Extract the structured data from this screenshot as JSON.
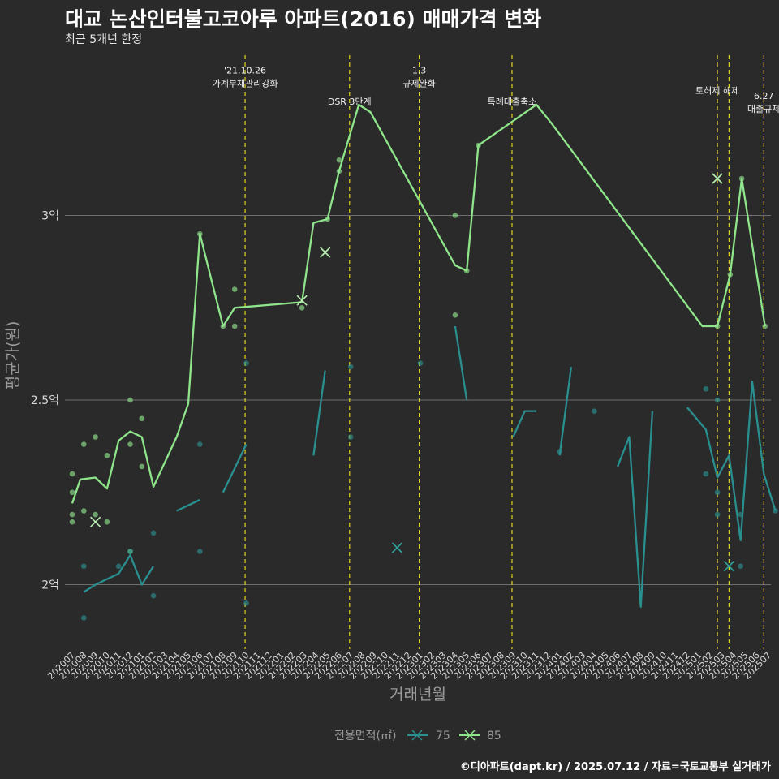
{
  "title": "대교 논산인터불고코아루 아파트(2016) 매매가격 변화",
  "subtitle": "최근 5개년 한정",
  "caption": "©디아파트(dapt.kr) / 2025.07.12 / 자료=국토교통부 실거래가",
  "chart_data": {
    "type": "line",
    "xlabel": "거래년월",
    "ylabel": "평균가(원)",
    "ylim": [
      1.85,
      3.13
    ],
    "unit": "억",
    "y_ticks": [
      2.0,
      2.5,
      3.0
    ],
    "y_tick_labels": [
      "2억",
      "2.5억",
      "3억"
    ],
    "grid": true,
    "legend": {
      "title": "전용면적(㎡)",
      "position": "bottom",
      "entries": [
        {
          "label": "75",
          "color": "#2a8f8f"
        },
        {
          "label": "85",
          "color": "#8ee58a"
        }
      ]
    },
    "x_categories": [
      "202007",
      "202008",
      "202009",
      "202010",
      "202011",
      "202012",
      "202101",
      "202102",
      "202103",
      "202104",
      "202105",
      "202106",
      "202107",
      "202108",
      "202109",
      "202110",
      "202111",
      "202112",
      "202201",
      "202202",
      "202203",
      "202204",
      "202205",
      "202206",
      "202207",
      "202208",
      "202209",
      "202210",
      "202211",
      "202212",
      "202301",
      "202302",
      "202303",
      "202304",
      "202305",
      "202306",
      "202307",
      "202308",
      "202309",
      "202310",
      "202311",
      "202312",
      "202401",
      "202402",
      "202403",
      "202404",
      "202405",
      "202406",
      "202407",
      "202408",
      "202409",
      "202410",
      "202411",
      "202412",
      "202501",
      "202502",
      "202503",
      "202504",
      "202505",
      "202506",
      "202507"
    ],
    "annotations": [
      {
        "x": 14.9,
        "lines": [
          "'21.10.26",
          "가계부채관리강화"
        ],
        "label_y": 3.35
      },
      {
        "x": 23.9,
        "lines": [
          "DSR 3단계"
        ],
        "label_y": 3.3
      },
      {
        "x": 29.9,
        "lines": [
          "1.3",
          "규제완화"
        ],
        "label_y": 3.35
      },
      {
        "x": 37.9,
        "lines": [
          "특례대출축소"
        ],
        "label_y": 3.3
      },
      {
        "x": 55.6,
        "lines": [
          "토허제 해제"
        ],
        "label_y": 3.33
      },
      {
        "x": 56.6,
        "lines": [],
        "label_y": 3.3
      },
      {
        "x": 59.6,
        "lines": [
          "6.27",
          "대출규제"
        ],
        "label_y": 3.28
      }
    ],
    "series": [
      {
        "name": "85",
        "color": "#8ee58a",
        "line": [
          [
            0,
            2.22
          ],
          [
            0.7,
            2.285
          ],
          [
            2,
            2.29
          ],
          [
            3,
            2.26
          ],
          [
            4,
            2.39
          ],
          [
            5,
            2.415
          ],
          [
            6,
            2.4
          ],
          [
            7,
            2.265
          ],
          [
            9,
            2.4
          ],
          [
            10,
            2.49
          ],
          [
            11,
            2.95
          ],
          [
            13,
            2.7
          ],
          [
            14,
            2.75
          ],
          [
            19.8,
            2.765
          ],
          [
            20.8,
            2.98
          ],
          [
            22,
            2.99
          ],
          [
            23,
            3.12
          ],
          [
            24.7,
            3.3
          ],
          [
            25.7,
            3.28
          ],
          [
            33,
            2.865
          ],
          [
            34,
            2.85
          ],
          [
            35,
            3.19
          ],
          [
            40,
            3.3
          ],
          [
            41.3,
            3.25
          ],
          [
            54.3,
            2.7
          ],
          [
            55.6,
            2.7
          ],
          [
            56.7,
            2.84
          ],
          [
            57.7,
            3.1
          ],
          [
            59.7,
            2.7
          ]
        ],
        "points": [
          [
            0,
            2.3
          ],
          [
            0,
            2.25
          ],
          [
            0,
            2.19
          ],
          [
            0,
            2.17
          ],
          [
            1,
            2.38
          ],
          [
            1,
            2.2
          ],
          [
            2,
            2.4
          ],
          [
            2,
            2.19
          ],
          [
            3,
            2.35
          ],
          [
            3,
            2.17
          ],
          [
            5,
            2.5
          ],
          [
            5,
            2.38
          ],
          [
            5,
            2.09
          ],
          [
            6,
            2.45
          ],
          [
            6,
            2.32
          ],
          [
            11,
            2.95
          ],
          [
            13,
            2.7
          ],
          [
            14,
            2.8
          ],
          [
            14,
            2.7
          ],
          [
            19.8,
            2.75
          ],
          [
            22,
            2.99
          ],
          [
            23,
            3.15
          ],
          [
            23,
            3.12
          ],
          [
            33,
            3.0
          ],
          [
            33,
            2.73
          ],
          [
            34,
            2.85
          ],
          [
            35,
            3.19
          ],
          [
            55.6,
            2.7
          ],
          [
            56.7,
            2.84
          ],
          [
            57.7,
            3.1
          ],
          [
            59.7,
            2.7
          ]
        ],
        "x_points": [
          [
            2,
            2.17
          ],
          [
            19.8,
            2.77
          ],
          [
            21.8,
            2.9
          ],
          [
            55.6,
            3.1
          ]
        ]
      },
      {
        "name": "75",
        "color": "#2a8f8f",
        "line_segments": [
          [
            [
              1,
              1.98
            ],
            [
              2,
              2.0
            ],
            [
              4,
              2.03
            ],
            [
              5,
              2.08
            ],
            [
              6,
              2.0
            ],
            [
              7,
              2.05
            ]
          ],
          [
            [
              9,
              2.2
            ],
            [
              11,
              2.23
            ]
          ],
          [
            [
              13,
              2.25
            ],
            [
              15,
              2.38
            ]
          ],
          [
            [
              20.8,
              2.35
            ],
            [
              21.8,
              2.58
            ]
          ],
          [
            [
              33,
              2.7
            ],
            [
              34,
              2.5
            ]
          ],
          [
            [
              38,
              2.4
            ],
            [
              39,
              2.47
            ],
            [
              40,
              2.47
            ]
          ],
          [
            [
              42,
              2.35
            ],
            [
              43,
              2.59
            ]
          ],
          [
            [
              47,
              2.32
            ],
            [
              48,
              2.4
            ],
            [
              49,
              1.94
            ],
            [
              50,
              2.47
            ]
          ],
          [
            [
              53,
              2.48
            ],
            [
              54.6,
              2.42
            ],
            [
              55.6,
              2.29
            ],
            [
              56.6,
              2.35
            ],
            [
              57.6,
              2.12
            ],
            [
              58.6,
              2.55
            ],
            [
              59.6,
              2.3
            ],
            [
              60.6,
              2.2
            ]
          ]
        ],
        "points": [
          [
            1,
            2.05
          ],
          [
            1,
            1.91
          ],
          [
            4,
            2.05
          ],
          [
            5,
            2.09
          ],
          [
            7,
            2.14
          ],
          [
            7,
            1.97
          ],
          [
            11,
            2.38
          ],
          [
            11,
            2.09
          ],
          [
            15,
            2.6
          ],
          [
            15,
            1.95
          ],
          [
            24,
            2.59
          ],
          [
            24,
            2.4
          ],
          [
            30,
            2.6
          ],
          [
            42,
            2.36
          ],
          [
            45,
            2.47
          ],
          [
            54.6,
            2.53
          ],
          [
            54.6,
            2.3
          ],
          [
            55.6,
            2.5
          ],
          [
            55.6,
            2.25
          ],
          [
            55.6,
            2.19
          ],
          [
            57.6,
            2.19
          ],
          [
            57.6,
            2.05
          ],
          [
            60.6,
            2.2
          ]
        ],
        "x_points": [
          [
            28,
            2.1
          ],
          [
            56.6,
            2.05
          ]
        ]
      }
    ]
  }
}
